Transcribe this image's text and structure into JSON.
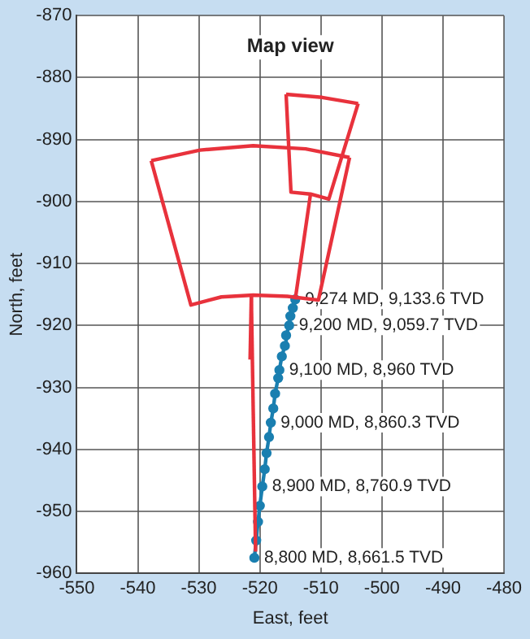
{
  "chart_data": {
    "type": "line",
    "title": "Map view",
    "xlabel": "East, feet",
    "ylabel": "North, feet",
    "xlim": [
      -550,
      -480
    ],
    "ylim": [
      -960,
      -870
    ],
    "xticks": [
      -550,
      -540,
      -530,
      -520,
      -510,
      -500,
      -490,
      -480
    ],
    "yticks": [
      -960,
      -950,
      -940,
      -930,
      -920,
      -910,
      -900,
      -890,
      -880,
      -870
    ],
    "grid": true,
    "series": [
      {
        "type": "line",
        "marker": "none",
        "color": "#e8323c",
        "x": [
          -537.8,
          -529.8,
          -521.1,
          -512.5,
          -505.3
        ],
        "values": [
          -893.4,
          -891.7,
          -891.0,
          -891.5,
          -892.9
        ]
      },
      {
        "type": "line",
        "marker": "none",
        "color": "#e8323c",
        "x": [
          -537.8,
          -531.3,
          -526.3,
          -521.1,
          -515.5,
          -510.4,
          -505.3
        ],
        "values": [
          -893.4,
          -916.7,
          -915.4,
          -915.1,
          -915.3,
          -915.9,
          -892.9
        ]
      },
      {
        "type": "line",
        "marker": "none",
        "color": "#e8323c",
        "x": [
          -515.7,
          -509.8,
          -503.9
        ],
        "values": [
          -882.7,
          -883.2,
          -884.2
        ]
      },
      {
        "type": "line",
        "marker": "none",
        "color": "#e8323c",
        "x": [
          -515.7,
          -514.9,
          -511.7,
          -508.7,
          -503.9
        ],
        "values": [
          -882.7,
          -898.5,
          -898.8,
          -899.6,
          -884.2
        ]
      },
      {
        "type": "line",
        "marker": "none",
        "color": "#e8323c",
        "x": [
          -514.2,
          -511.7
        ],
        "values": [
          -915.8,
          -898.8
        ]
      },
      {
        "type": "line",
        "marker": "none",
        "color": "#e8323c",
        "x": [
          -521.6,
          -521.4
        ],
        "values": [
          -925.5,
          -915.3
        ]
      },
      {
        "type": "line",
        "marker": "none",
        "color": "#e8323c",
        "x": [
          -521.4,
          -520.7
        ],
        "values": [
          -915.3,
          -956.5
        ]
      },
      {
        "type": "line",
        "marker": "circle",
        "color": "#1a7fb0",
        "x": [
          -520.9,
          -520.6,
          -520.3,
          -520.0,
          -519.6,
          -519.2,
          -518.9,
          -518.5,
          -518.2,
          -517.8,
          -517.5,
          -517.0,
          -516.8,
          -516.4,
          -515.9,
          -515.7,
          -515.2,
          -515.0,
          -514.6,
          -514.2
        ],
        "values": [
          -957.5,
          -954.7,
          -951.7,
          -949.1,
          -946.0,
          -943.2,
          -940.6,
          -938.0,
          -935.7,
          -933.4,
          -931.0,
          -928.5,
          -927.2,
          -925.0,
          -923.3,
          -921.6,
          -920.0,
          -918.5,
          -917.2,
          -915.8
        ]
      }
    ],
    "annotations": [
      {
        "text": "9,274 MD, 9,133.6 TVD",
        "x": -514.2,
        "y": -915.8
      },
      {
        "text": "9,200 MD, 9,059.7 TVD",
        "x": -515.2,
        "y": -920.0
      },
      {
        "text": "9,100 MD, 8,960 TVD",
        "x": -516.8,
        "y": -927.2
      },
      {
        "text": "9,000 MD, 8,860.3 TVD",
        "x": -518.2,
        "y": -935.7
      },
      {
        "text": "8,900 MD, 8,760.9 TVD",
        "x": -519.6,
        "y": -946.0
      },
      {
        "text": "8,800 MD, 8,661.5 TVD",
        "x": -520.9,
        "y": -957.5
      }
    ]
  }
}
